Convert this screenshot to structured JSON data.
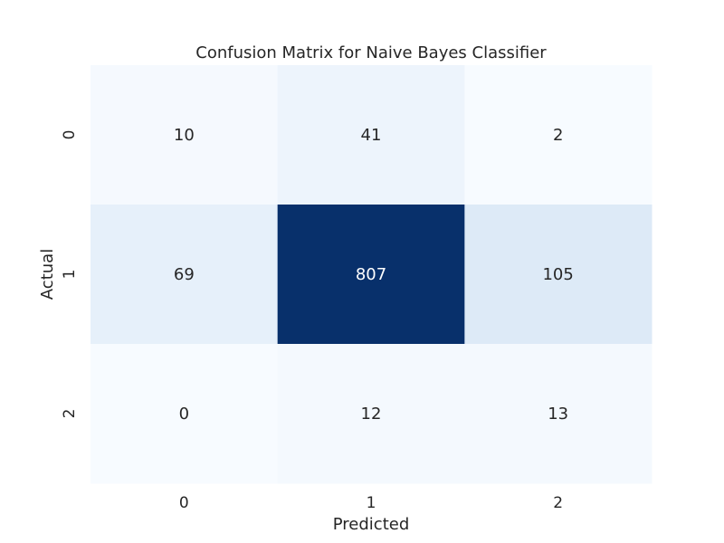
{
  "chart_data": {
    "type": "heatmap",
    "title": "Confusion Matrix for Naive Bayes Classifier",
    "xlabel": "Predicted",
    "ylabel": "Actual",
    "x_categories": [
      "0",
      "1",
      "2"
    ],
    "y_categories": [
      "0",
      "1",
      "2"
    ],
    "values": [
      [
        10,
        41,
        2
      ],
      [
        69,
        807,
        105
      ],
      [
        0,
        12,
        13
      ]
    ],
    "colormap": "Blues",
    "colorbar": false,
    "grid": false
  }
}
